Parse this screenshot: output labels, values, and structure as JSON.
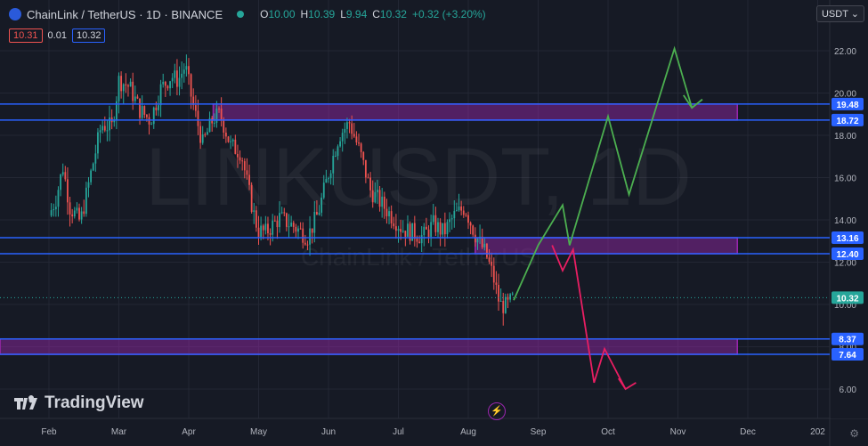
{
  "header": {
    "symbol_text": "ChainLink / TetherUS · 1D · BINANCE",
    "open_label": "O",
    "open": "10.00",
    "high_label": "H",
    "high": "10.39",
    "low_label": "L",
    "low": "9.94",
    "close_label": "C",
    "close": "10.32",
    "change": "+0.32 (+3.20%)",
    "sell_price": "10.31",
    "spread": "0.01",
    "buy_price": "10.32"
  },
  "currency_button": "USDT",
  "watermark": {
    "symbol": "LINKUSDT, 1D",
    "name": "ChainLink / TetherUS"
  },
  "branding": "TradingView",
  "settings_icon": "gear-icon",
  "colors": {
    "up": "#26a69a",
    "down": "#ef5350",
    "level": "#2962ff",
    "zone": "#9c27b0",
    "green_path": "#4caf50",
    "red_path": "#e91e63"
  },
  "chart_data": {
    "type": "candlestick",
    "x_ticks": [
      "Feb",
      "Mar",
      "Apr",
      "May",
      "Jun",
      "Jul",
      "Aug",
      "Sep",
      "Oct",
      "Nov",
      "Dec",
      "202"
    ],
    "y_ticks": [
      "22.00",
      "20.00",
      "18.00",
      "16.00",
      "14.00",
      "12.00",
      "10.00",
      "8.00",
      "6.00"
    ],
    "ylim": [
      5.3,
      23.5
    ],
    "current_price": "10.32",
    "levels": [
      "19.48",
      "18.72",
      "13.16",
      "12.40",
      "8.37",
      "7.64"
    ],
    "zones": [
      {
        "from_month": 2.35,
        "to_month": 9.85,
        "low": 18.72,
        "high": 19.48
      },
      {
        "from_month": 6.1,
        "to_month": 9.85,
        "low": 12.4,
        "high": 13.16
      },
      {
        "from_month": 0,
        "to_month": 9.85,
        "low": 7.64,
        "high": 8.37
      }
    ],
    "close_path": [
      [
        0,
        14.2
      ],
      [
        0.1,
        15.0
      ],
      [
        0.2,
        16.5
      ],
      [
        0.3,
        14.6
      ],
      [
        0.45,
        13.9
      ],
      [
        0.6,
        16.2
      ],
      [
        0.75,
        18.5
      ],
      [
        0.9,
        18.4
      ],
      [
        1.0,
        20.6
      ],
      [
        1.15,
        20.3
      ],
      [
        1.3,
        19.2
      ],
      [
        1.45,
        18.7
      ],
      [
        1.6,
        20.2
      ],
      [
        1.75,
        20.8
      ],
      [
        1.85,
        20.6
      ],
      [
        1.95,
        21.3
      ],
      [
        2.05,
        19.6
      ],
      [
        2.2,
        17.6
      ],
      [
        2.35,
        18.8
      ],
      [
        2.45,
        19.0
      ],
      [
        2.6,
        17.5
      ],
      [
        2.75,
        17.2
      ],
      [
        2.85,
        15.5
      ],
      [
        2.95,
        14.0
      ],
      [
        3.0,
        13.5
      ],
      [
        3.1,
        13.4
      ],
      [
        3.3,
        14.1
      ],
      [
        3.5,
        13.7
      ],
      [
        3.7,
        13.2
      ],
      [
        3.85,
        14.3
      ],
      [
        4.0,
        16.2
      ],
      [
        4.15,
        18.0
      ],
      [
        4.3,
        18.6
      ],
      [
        4.45,
        17.2
      ],
      [
        4.6,
        15.4
      ],
      [
        4.75,
        14.8
      ],
      [
        4.9,
        14.2
      ],
      [
        5.05,
        13.6
      ],
      [
        5.2,
        13.4
      ],
      [
        5.35,
        13.2
      ],
      [
        5.5,
        13.8
      ],
      [
        5.65,
        13.4
      ],
      [
        5.8,
        14.2
      ],
      [
        5.95,
        14.6
      ],
      [
        6.1,
        13.3
      ],
      [
        6.25,
        12.4
      ],
      [
        6.35,
        11.4
      ],
      [
        6.45,
        10.0
      ],
      [
        6.55,
        9.9
      ],
      [
        6.65,
        10.32
      ]
    ],
    "green_projection": [
      [
        6.65,
        10.2
      ],
      [
        7.0,
        12.8
      ],
      [
        7.35,
        14.7
      ],
      [
        7.45,
        12.8
      ],
      [
        8.0,
        18.9
      ],
      [
        8.3,
        15.2
      ],
      [
        8.95,
        22.1
      ],
      [
        9.2,
        19.3
      ]
    ],
    "green_arrow_tip": [
      9.35,
      19.7
    ],
    "red_projection": [
      [
        7.2,
        12.8
      ],
      [
        7.35,
        11.6
      ],
      [
        7.5,
        12.6
      ],
      [
        7.8,
        6.3
      ],
      [
        7.95,
        7.9
      ],
      [
        8.25,
        6.0
      ]
    ],
    "red_arrow_tip": [
      8.4,
      6.3
    ]
  }
}
